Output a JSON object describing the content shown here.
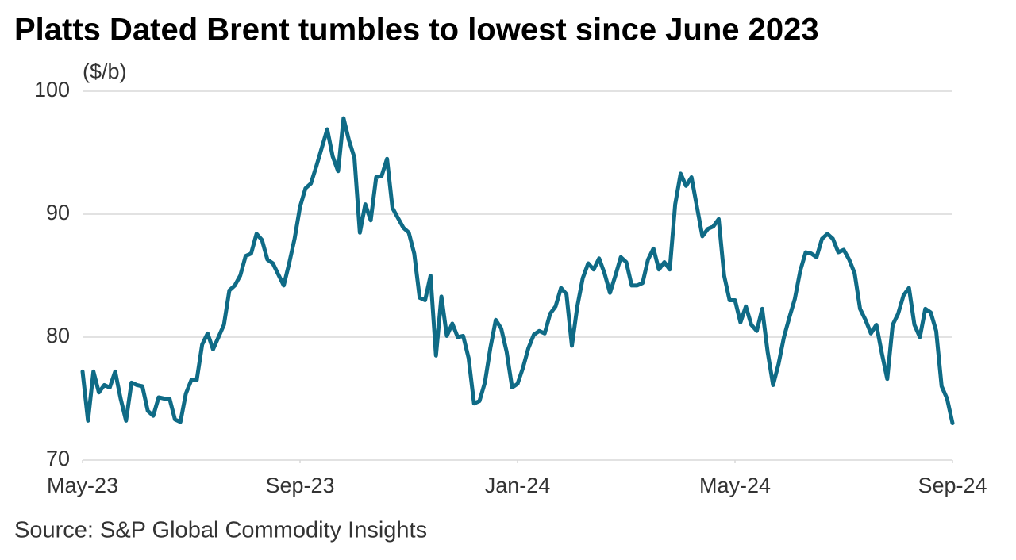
{
  "chart_data": {
    "type": "line",
    "title": "Platts Dated Brent tumbles to lowest since June 2023",
    "y_label": "($/b)",
    "source": "Source: S&P Global Commodity Insights",
    "xlim": [
      0,
      16
    ],
    "xticks": [
      {
        "value": 0,
        "label": "May-23"
      },
      {
        "value": 4,
        "label": "Sep-23"
      },
      {
        "value": 8,
        "label": "Jan-24"
      },
      {
        "value": 12,
        "label": "May-24"
      },
      {
        "value": 16,
        "label": "Sep-24"
      }
    ],
    "ylim": [
      70,
      100
    ],
    "yticks": [
      70,
      80,
      90,
      100
    ],
    "grid": true,
    "x": [
      0,
      0.1,
      0.2,
      0.3,
      0.4,
      0.5,
      0.6,
      0.7,
      0.8,
      0.9,
      1,
      1.1,
      1.2,
      1.3,
      1.4,
      1.5,
      1.6,
      1.7,
      1.8,
      1.9,
      2,
      2.1,
      2.2,
      2.3,
      2.4,
      2.5,
      2.6,
      2.7,
      2.8,
      2.9,
      3,
      3.1,
      3.2,
      3.3,
      3.4,
      3.5,
      3.6,
      3.7,
      3.8,
      3.9,
      4,
      4.1,
      4.2,
      4.3,
      4.4,
      4.5,
      4.6,
      4.7,
      4.8,
      4.9,
      5,
      5.1,
      5.2,
      5.3,
      5.4,
      5.5,
      5.6,
      5.7,
      5.8,
      5.9,
      6,
      6.1,
      6.2,
      6.3,
      6.4,
      6.5,
      6.6,
      6.7,
      6.8,
      6.9,
      7,
      7.1,
      7.2,
      7.3,
      7.4,
      7.5,
      7.6,
      7.7,
      7.8,
      7.9,
      8,
      8.1,
      8.2,
      8.3,
      8.4,
      8.5,
      8.6,
      8.7,
      8.8,
      8.9,
      9,
      9.1,
      9.2,
      9.3,
      9.4,
      9.5,
      9.6,
      9.7,
      9.8,
      9.9,
      10,
      10.1,
      10.2,
      10.3,
      10.4,
      10.5,
      10.6,
      10.7,
      10.8,
      10.9,
      11,
      11.1,
      11.2,
      11.3,
      11.4,
      11.5,
      11.6,
      11.7,
      11.8,
      11.9,
      12,
      12.1,
      12.2,
      12.3,
      12.4,
      12.5,
      12.6,
      12.7,
      12.8,
      12.9,
      13,
      13.1,
      13.2,
      13.3,
      13.4,
      13.5,
      13.6,
      13.7,
      13.8,
      13.9,
      14,
      14.1,
      14.2,
      14.3,
      14.4,
      14.5,
      14.6,
      14.7,
      14.8,
      14.9,
      15,
      15.1,
      15.2,
      15.3,
      15.4,
      15.5,
      15.6,
      15.7,
      15.8,
      15.9,
      16
    ],
    "series": [
      {
        "name": "Platts Dated Brent",
        "color": "#0f6b86",
        "values": [
          77.2,
          73.2,
          77.2,
          75.5,
          76.1,
          75.9,
          77.2,
          75,
          73.2,
          76.3,
          76.1,
          76,
          74,
          73.6,
          75.1,
          75,
          75,
          73.3,
          73.1,
          75.4,
          76.5,
          76.5,
          79.4,
          80.3,
          79,
          80,
          81,
          83.8,
          84.2,
          85,
          86.6,
          86.8,
          88.4,
          87.9,
          86.3,
          86,
          85.1,
          84.2,
          86,
          88,
          90.6,
          92.1,
          92.5,
          93.9,
          95.4,
          96.9,
          94.7,
          93.5,
          97.8,
          96,
          94.6,
          88.5,
          90.8,
          89.5,
          93,
          93.1,
          94.5,
          90.5,
          89.7,
          88.9,
          88.5,
          86.8,
          83.2,
          83,
          85,
          78.5,
          83.3,
          80.1,
          81.1,
          80,
          80.1,
          78.3,
          74.6,
          74.8,
          76.3,
          79.1,
          81.4,
          80.7,
          78.8,
          75.9,
          76.2,
          77.5,
          79.1,
          80.2,
          80.5,
          80.3,
          81.9,
          82.5,
          84,
          83.5,
          79.3,
          82.5,
          84.8,
          86,
          85.5,
          86.4,
          85.2,
          83.6,
          85,
          86.5,
          86.1,
          84.2,
          84.2,
          84.4,
          86.3,
          87.2,
          85.5,
          86.1,
          85.5,
          90.8,
          93.3,
          92.3,
          93,
          90.6,
          88.2,
          88.8,
          89,
          89.6,
          85,
          83,
          83,
          81.2,
          82.5,
          81,
          80.5,
          82.3,
          78.8,
          76.1,
          77.8,
          80,
          81.6,
          83.1,
          85.4,
          86.9,
          86.8,
          86.5,
          88,
          88.4,
          88,
          86.9,
          87.1,
          86.3,
          85.2,
          82.3,
          81.4,
          80.3,
          81,
          78.7,
          76.6,
          81,
          81.9,
          83.4,
          84,
          81,
          80,
          82.3,
          82,
          80.5,
          76,
          75,
          73
        ]
      }
    ]
  }
}
